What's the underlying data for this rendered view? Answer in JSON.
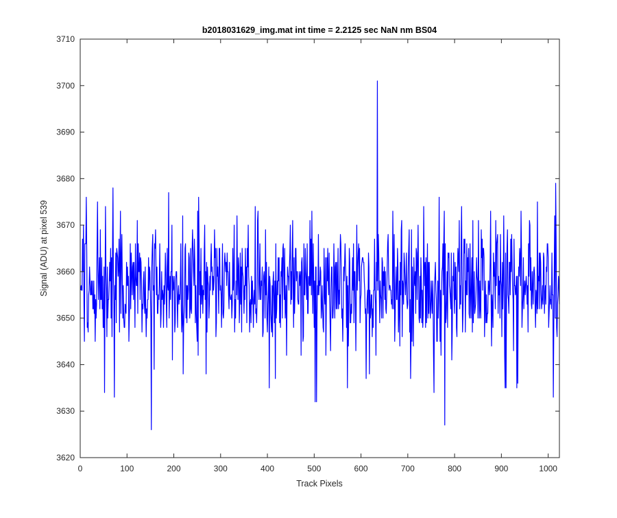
{
  "chart_data": {
    "type": "line",
    "title": "b2018031629_img.mat int time = 2.2125 sec  NaN nm BS04",
    "xlabel": "Track Pixels",
    "ylabel": "Signal (ADU) at pixel 539",
    "xlim": [
      0,
      1024
    ],
    "ylim": [
      3620,
      3710
    ],
    "xticks": [
      0,
      100,
      200,
      300,
      400,
      500,
      600,
      700,
      800,
      900,
      1000
    ],
    "yticks": [
      3620,
      3630,
      3640,
      3650,
      3660,
      3670,
      3680,
      3690,
      3700,
      3710
    ],
    "grid": false,
    "legend": "none",
    "series": [
      {
        "color": "#0000ff",
        "noise": {
          "count": 1024,
          "x_start": 1,
          "mean": 3656.5,
          "std": 6.5,
          "min": 3626,
          "max": 3701
        },
        "features": [
          {
            "x": 13,
            "y": 3676
          },
          {
            "x": 37,
            "y": 3675
          },
          {
            "x": 54,
            "y": 3674
          },
          {
            "x": 70,
            "y": 3678
          },
          {
            "x": 73,
            "y": 3633
          },
          {
            "x": 86,
            "y": 3673
          },
          {
            "x": 152,
            "y": 3626
          },
          {
            "x": 220,
            "y": 3638
          },
          {
            "x": 253,
            "y": 3676
          },
          {
            "x": 404,
            "y": 3635
          },
          {
            "x": 505,
            "y": 3632
          },
          {
            "x": 571,
            "y": 3635
          },
          {
            "x": 618,
            "y": 3638
          },
          {
            "x": 635,
            "y": 3701
          },
          {
            "x": 668,
            "y": 3673
          },
          {
            "x": 756,
            "y": 3634
          },
          {
            "x": 779,
            "y": 3627
          },
          {
            "x": 908,
            "y": 3635
          },
          {
            "x": 1011,
            "y": 3633
          },
          {
            "x": 1016,
            "y": 3679
          }
        ]
      }
    ]
  }
}
